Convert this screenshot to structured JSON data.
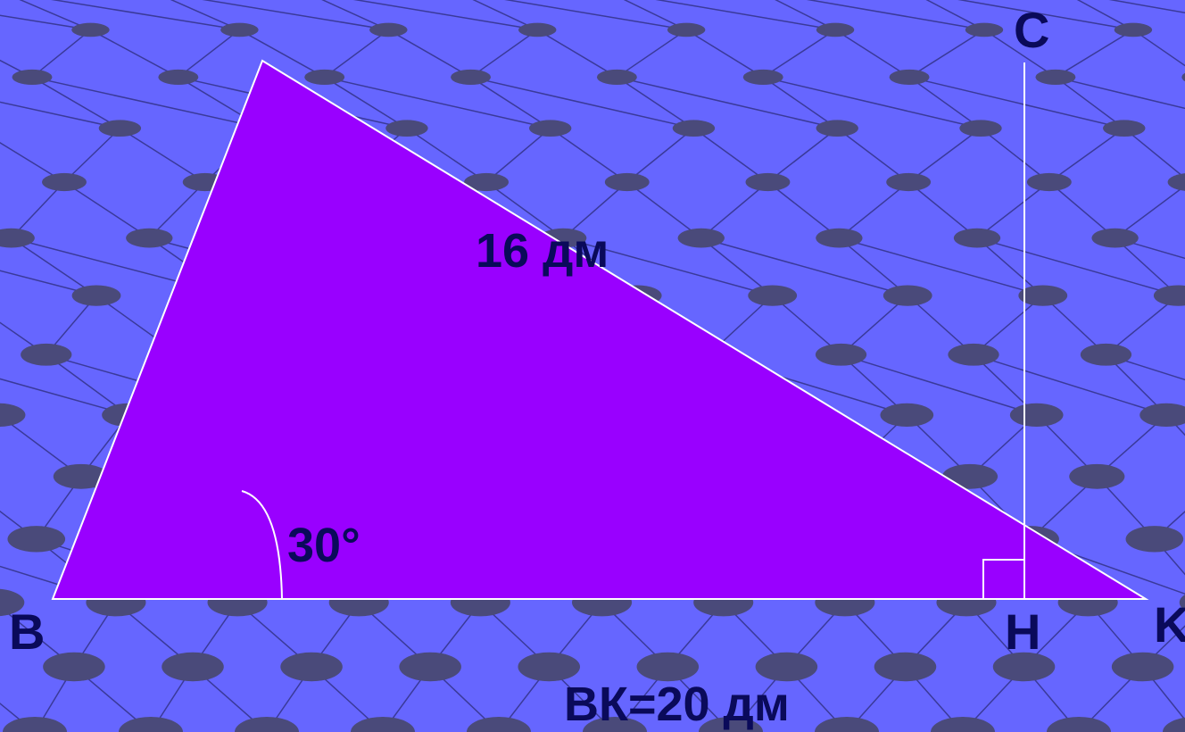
{
  "diagram": {
    "vertices": {
      "B": "B",
      "C": "C",
      "H": "H",
      "K": "K"
    },
    "side_label": "16 дм",
    "angle_label": "30°",
    "base_label": "ВК=20 дм",
    "colors": {
      "background": "#6666ff",
      "grid_line": "#3a3a99",
      "grid_dot": "#4a4a7a",
      "triangle_fill": "#9900ff",
      "outline": "#ffffff",
      "label": "#0a0a5a"
    }
  }
}
